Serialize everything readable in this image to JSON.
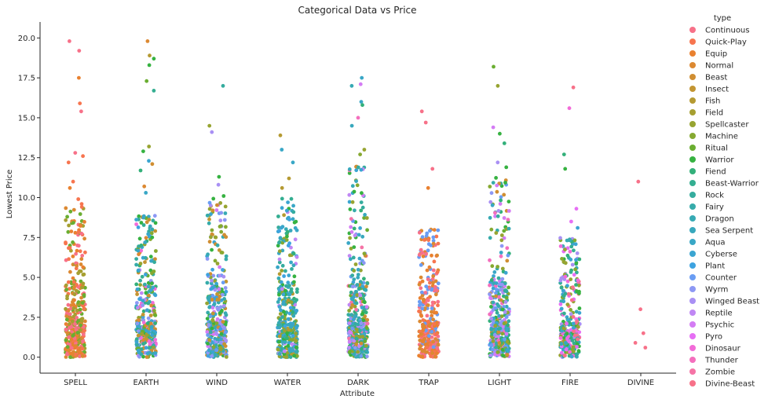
{
  "chart_data": {
    "type": "scatter",
    "title": "Categorical Data vs Price",
    "xlabel": "Attribute",
    "ylabel": "Lowest Price",
    "categories": [
      "SPELL",
      "EARTH",
      "WIND",
      "WATER",
      "DARK",
      "TRAP",
      "LIGHT",
      "FIRE",
      "DIVINE"
    ],
    "ylim": [
      -1,
      21
    ],
    "yticks": [
      0.0,
      2.5,
      5.0,
      7.5,
      10.0,
      12.5,
      15.0,
      17.5,
      20.0
    ],
    "ytick_labels": [
      "0.0",
      "2.5",
      "5.0",
      "7.5",
      "10.0",
      "12.5",
      "15.0",
      "17.5",
      "20.0"
    ],
    "grid": false,
    "legend_title": "type",
    "legend_placement": "right",
    "series": [
      {
        "name": "Continuous",
        "color": "#f77189"
      },
      {
        "name": "Quick-Play",
        "color": "#f7754f"
      },
      {
        "name": "Equip",
        "color": "#e98130"
      },
      {
        "name": "Normal",
        "color": "#dc8932"
      },
      {
        "name": "Beast",
        "color": "#d08e32"
      },
      {
        "name": "Insect",
        "color": "#c39532"
      },
      {
        "name": "Fish",
        "color": "#b59a32"
      },
      {
        "name": "Field",
        "color": "#a69f31"
      },
      {
        "name": "Spellcaster",
        "color": "#97a431"
      },
      {
        "name": "Machine",
        "color": "#86a931"
      },
      {
        "name": "Ritual",
        "color": "#6aae31"
      },
      {
        "name": "Warrior",
        "color": "#36b241"
      },
      {
        "name": "Fiend",
        "color": "#33b07a"
      },
      {
        "name": "Beast-Warrior",
        "color": "#34ae91"
      },
      {
        "name": "Rock",
        "color": "#35ac9e"
      },
      {
        "name": "Fairy",
        "color": "#36abaa"
      },
      {
        "name": "Dragon",
        "color": "#37aab4"
      },
      {
        "name": "Sea Serpent",
        "color": "#38a8bd"
      },
      {
        "name": "Aqua",
        "color": "#39a7c6"
      },
      {
        "name": "Cyberse",
        "color": "#3ba5d1"
      },
      {
        "name": "Plant",
        "color": "#3ea3e0"
      },
      {
        "name": "Counter",
        "color": "#6a9df3"
      },
      {
        "name": "Wyrm",
        "color": "#8d98f4"
      },
      {
        "name": "Winged Beast",
        "color": "#a990f4"
      },
      {
        "name": "Reptile",
        "color": "#c087f4"
      },
      {
        "name": "Psychic",
        "color": "#d47cf4"
      },
      {
        "name": "Pyro",
        "color": "#e66ff4"
      },
      {
        "name": "Dinosaur",
        "color": "#f26bd8"
      },
      {
        "name": "Thunder",
        "color": "#f46fbd"
      },
      {
        "name": "Zombie",
        "color": "#f574a6"
      },
      {
        "name": "Divine-Beast",
        "color": "#f77189"
      }
    ],
    "outliers": [
      {
        "x": "SPELL",
        "y": 19.8,
        "type": "Continuous"
      },
      {
        "x": "SPELL",
        "y": 19.2,
        "type": "Continuous"
      },
      {
        "x": "SPELL",
        "y": 17.5,
        "type": "Equip"
      },
      {
        "x": "SPELL",
        "y": 15.9,
        "type": "Quick-Play"
      },
      {
        "x": "SPELL",
        "y": 15.4,
        "type": "Continuous"
      },
      {
        "x": "SPELL",
        "y": 12.8,
        "type": "Continuous"
      },
      {
        "x": "SPELL",
        "y": 12.6,
        "type": "Quick-Play"
      },
      {
        "x": "SPELL",
        "y": 12.2,
        "type": "Quick-Play"
      },
      {
        "x": "SPELL",
        "y": 11.0,
        "type": "Quick-Play"
      },
      {
        "x": "SPELL",
        "y": 10.6,
        "type": "Equip"
      },
      {
        "x": "SPELL",
        "y": 9.9,
        "type": "Quick-Play"
      },
      {
        "x": "SPELL",
        "y": 9.6,
        "type": "Quick-Play"
      },
      {
        "x": "EARTH",
        "y": 19.8,
        "type": "Normal"
      },
      {
        "x": "EARTH",
        "y": 18.9,
        "type": "Fish"
      },
      {
        "x": "EARTH",
        "y": 18.7,
        "type": "Warrior"
      },
      {
        "x": "EARTH",
        "y": 18.3,
        "type": "Warrior"
      },
      {
        "x": "EARTH",
        "y": 17.3,
        "type": "Ritual"
      },
      {
        "x": "EARTH",
        "y": 16.7,
        "type": "Beast-Warrior"
      },
      {
        "x": "EARTH",
        "y": 13.2,
        "type": "Spellcaster"
      },
      {
        "x": "EARTH",
        "y": 12.9,
        "type": "Warrior"
      },
      {
        "x": "EARTH",
        "y": 12.3,
        "type": "Cyberse"
      },
      {
        "x": "EARTH",
        "y": 12.1,
        "type": "Beast"
      },
      {
        "x": "EARTH",
        "y": 11.7,
        "type": "Fiend"
      },
      {
        "x": "EARTH",
        "y": 10.7,
        "type": "Normal"
      },
      {
        "x": "EARTH",
        "y": 10.3,
        "type": "Aqua"
      },
      {
        "x": "WIND",
        "y": 17.0,
        "type": "Rock"
      },
      {
        "x": "WIND",
        "y": 14.5,
        "type": "Spellcaster"
      },
      {
        "x": "WIND",
        "y": 14.1,
        "type": "Winged Beast"
      },
      {
        "x": "WIND",
        "y": 11.3,
        "type": "Warrior"
      },
      {
        "x": "WIND",
        "y": 10.8,
        "type": "Winged Beast"
      },
      {
        "x": "WIND",
        "y": 10.1,
        "type": "Warrior"
      },
      {
        "x": "WATER",
        "y": 13.9,
        "type": "Fish"
      },
      {
        "x": "WATER",
        "y": 13.0,
        "type": "Aqua"
      },
      {
        "x": "WATER",
        "y": 12.2,
        "type": "Aqua"
      },
      {
        "x": "WATER",
        "y": 11.2,
        "type": "Fish"
      },
      {
        "x": "WATER",
        "y": 10.6,
        "type": "Fish"
      },
      {
        "x": "DARK",
        "y": 17.5,
        "type": "Aqua"
      },
      {
        "x": "DARK",
        "y": 17.1,
        "type": "Psychic"
      },
      {
        "x": "DARK",
        "y": 17.0,
        "type": "Dragon"
      },
      {
        "x": "DARK",
        "y": 16.0,
        "type": "Aqua"
      },
      {
        "x": "DARK",
        "y": 15.8,
        "type": "Fiend"
      },
      {
        "x": "DARK",
        "y": 15.0,
        "type": "Thunder"
      },
      {
        "x": "DARK",
        "y": 14.5,
        "type": "Sea Serpent"
      },
      {
        "x": "DARK",
        "y": 13.0,
        "type": "Spellcaster"
      },
      {
        "x": "DARK",
        "y": 12.7,
        "type": "Machine"
      },
      {
        "x": "TRAP",
        "y": 15.4,
        "type": "Continuous"
      },
      {
        "x": "TRAP",
        "y": 14.7,
        "type": "Continuous"
      },
      {
        "x": "TRAP",
        "y": 11.8,
        "type": "Continuous"
      },
      {
        "x": "TRAP",
        "y": 10.6,
        "type": "Equip"
      },
      {
        "x": "LIGHT",
        "y": 18.2,
        "type": "Ritual"
      },
      {
        "x": "LIGHT",
        "y": 17.0,
        "type": "Spellcaster"
      },
      {
        "x": "LIGHT",
        "y": 14.4,
        "type": "Psychic"
      },
      {
        "x": "LIGHT",
        "y": 14.0,
        "type": "Warrior"
      },
      {
        "x": "LIGHT",
        "y": 13.4,
        "type": "Fiend"
      },
      {
        "x": "LIGHT",
        "y": 12.2,
        "type": "Winged Beast"
      },
      {
        "x": "LIGHT",
        "y": 11.9,
        "type": "Warrior"
      },
      {
        "x": "FIRE",
        "y": 16.9,
        "type": "Continuous"
      },
      {
        "x": "FIRE",
        "y": 15.6,
        "type": "Dinosaur"
      },
      {
        "x": "FIRE",
        "y": 12.7,
        "type": "Fiend"
      },
      {
        "x": "FIRE",
        "y": 11.8,
        "type": "Warrior"
      },
      {
        "x": "FIRE",
        "y": 9.3,
        "type": "Pyro"
      },
      {
        "x": "FIRE",
        "y": 8.5,
        "type": "Pyro"
      },
      {
        "x": "FIRE",
        "y": 8.1,
        "type": "Cyberse"
      },
      {
        "x": "DIVINE",
        "y": 11.0,
        "type": "Continuous"
      },
      {
        "x": "DIVINE",
        "y": 3.0,
        "type": "Continuous"
      },
      {
        "x": "DIVINE",
        "y": 1.5,
        "type": "Continuous"
      },
      {
        "x": "DIVINE",
        "y": 0.9,
        "type": "Continuous"
      },
      {
        "x": "DIVINE",
        "y": 0.6,
        "type": "Continuous"
      }
    ],
    "clusters": [
      {
        "x": "SPELL",
        "ymax": 9.5,
        "types": [
          "Continuous",
          "Quick-Play",
          "Equip",
          "Field",
          "Ritual",
          "Normal"
        ]
      },
      {
        "x": "EARTH",
        "ymax": 9.0,
        "types": [
          "Warrior",
          "Rock",
          "Machine",
          "Beast",
          "Spellcaster",
          "Beast-Warrior",
          "Insect",
          "Plant",
          "Dinosaur",
          "Fiend",
          "Fairy",
          "Aqua",
          "Wyrm",
          "Normal",
          "Ritual",
          "Reptile",
          "Cyberse"
        ]
      },
      {
        "x": "WIND",
        "ymax": 10.0,
        "types": [
          "Winged Beast",
          "Insect",
          "Dragon",
          "Spellcaster",
          "Warrior",
          "Plant",
          "Machine",
          "Fairy",
          "Psychic",
          "Beast",
          "Counter",
          "Wyrm",
          "Cyberse"
        ]
      },
      {
        "x": "WATER",
        "ymax": 10.0,
        "types": [
          "Aqua",
          "Fish",
          "Sea Serpent",
          "Cyberse",
          "Warrior",
          "Spellcaster",
          "Machine",
          "Beast-Warrior",
          "Reptile",
          "Fiend",
          "Plant",
          "Dragon",
          "Rock"
        ]
      },
      {
        "x": "DARK",
        "ymax": 12.0,
        "types": [
          "Fiend",
          "Dragon",
          "Zombie",
          "Spellcaster",
          "Warrior",
          "Machine",
          "Psychic",
          "Cyberse",
          "Beast-Warrior",
          "Reptile",
          "Aqua",
          "Wyrm",
          "Fairy",
          "Ritual",
          "Beast",
          "Sea Serpent",
          "Rock",
          "Counter"
        ]
      },
      {
        "x": "TRAP",
        "ymax": 8.0,
        "types": [
          "Continuous",
          "Counter",
          "Normal",
          "Equip",
          "Quick-Play"
        ]
      },
      {
        "x": "LIGHT",
        "ymax": 11.5,
        "types": [
          "Fairy",
          "Dragon",
          "Warrior",
          "Spellcaster",
          "Machine",
          "Thunder",
          "Cyberse",
          "Psychic",
          "Beast",
          "Aqua",
          "Wyrm",
          "Rock",
          "Ritual",
          "Fiend",
          "Winged Beast",
          "Counter"
        ]
      },
      {
        "x": "FIRE",
        "ymax": 7.5,
        "types": [
          "Pyro",
          "Dinosaur",
          "Warrior",
          "Machine",
          "Fiend",
          "Beast-Warrior",
          "Cyberse",
          "Spellcaster",
          "Dragon",
          "Winged Beast",
          "Continuous",
          "Rock"
        ]
      }
    ]
  }
}
